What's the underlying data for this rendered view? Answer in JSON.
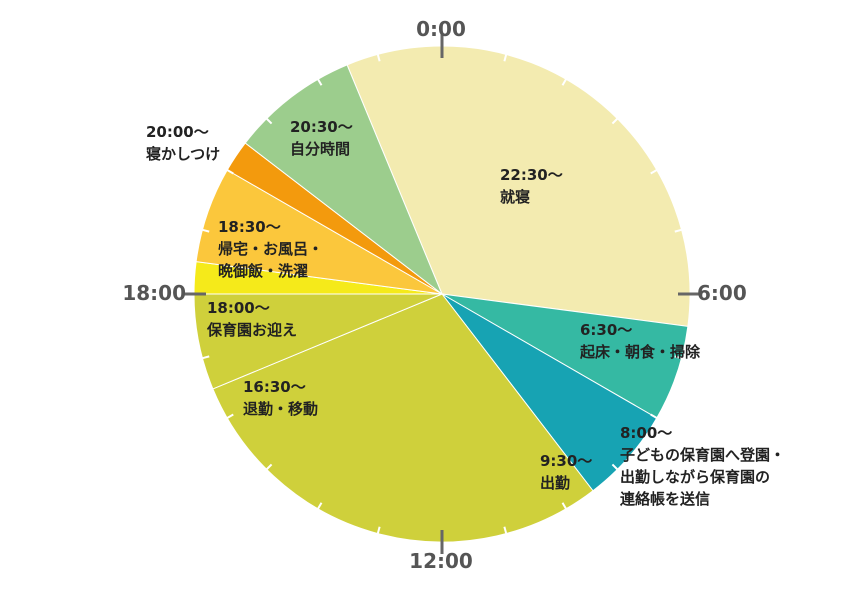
{
  "chart_data": {
    "type": "pie",
    "clock_labels": {
      "top": "0:00",
      "right": "6:00",
      "bottom": "12:00",
      "left": "18:00"
    },
    "slices": [
      {
        "start": 22.5,
        "end": 30.5,
        "color": "#f3ebb0",
        "lines": [
          "22:30〜",
          "就寝"
        ]
      },
      {
        "start": 6.5,
        "end": 8.0,
        "color": "#35b9a3",
        "lines": [
          "6:30〜",
          "起床・朝食・掃除"
        ]
      },
      {
        "start": 8.0,
        "end": 9.5,
        "color": "#17a3b3",
        "lines": [
          "8:00〜",
          "子どもの保育園へ登園・",
          "出勤しながら保育園の",
          "連絡帳を送信"
        ]
      },
      {
        "start": 9.5,
        "end": 16.5,
        "color": "#cfd03b",
        "lines": [
          "9:30〜",
          "出勤"
        ]
      },
      {
        "start": 16.5,
        "end": 18.0,
        "color": "#cfd03b",
        "lines": [
          "16:30〜",
          "退勤・移動"
        ]
      },
      {
        "start": 18.0,
        "end": 18.5,
        "color": "#f5ea1a",
        "lines": [
          "18:00〜",
          "保育園お迎え"
        ]
      },
      {
        "start": 18.5,
        "end": 20.0,
        "color": "#fbc73c",
        "lines": [
          "18:30〜",
          "帰宅・お風呂・",
          "晩御飯・洗濯"
        ]
      },
      {
        "start": 20.0,
        "end": 20.5,
        "color": "#f39a0d",
        "lines": [
          "20:00〜",
          "寝かしつけ"
        ]
      },
      {
        "start": 20.5,
        "end": 22.5,
        "color": "#9ccd8d",
        "lines": [
          "20:30〜",
          "自分時間"
        ]
      }
    ]
  }
}
